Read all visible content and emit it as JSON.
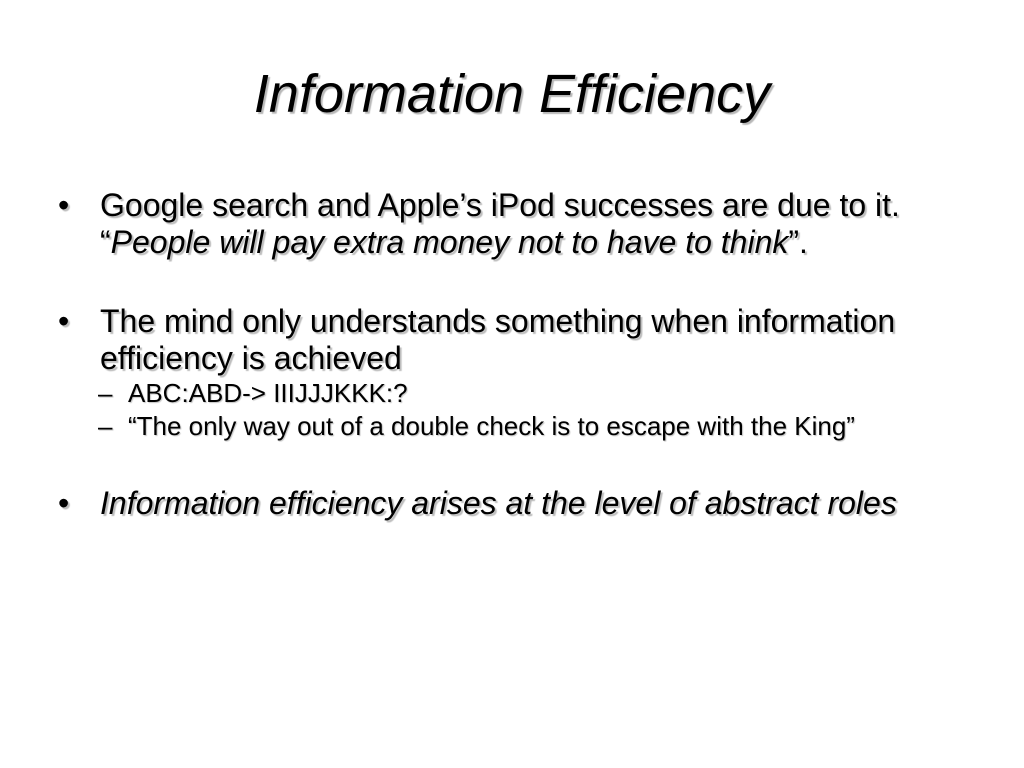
{
  "slide": {
    "title": "Information Efficiency",
    "bullets": [
      {
        "marker": "•",
        "text_a": "Google search and Apple’s iPod successes are due to it.  “",
        "text_b_italic": "People will pay extra money not to have to think",
        "text_c": "”."
      },
      {
        "marker": "•",
        "text": "The mind only understands something when information efficiency is achieved",
        "subitems": [
          {
            "marker": "–",
            "text": "ABC:ABD-> IIIJJJKKK:?"
          },
          {
            "marker": "–",
            "text": "“The only way out of a double check is to escape with the King”"
          }
        ]
      },
      {
        "marker": "•",
        "text_italic": "Information efficiency arises at the level of abstract roles"
      }
    ]
  }
}
